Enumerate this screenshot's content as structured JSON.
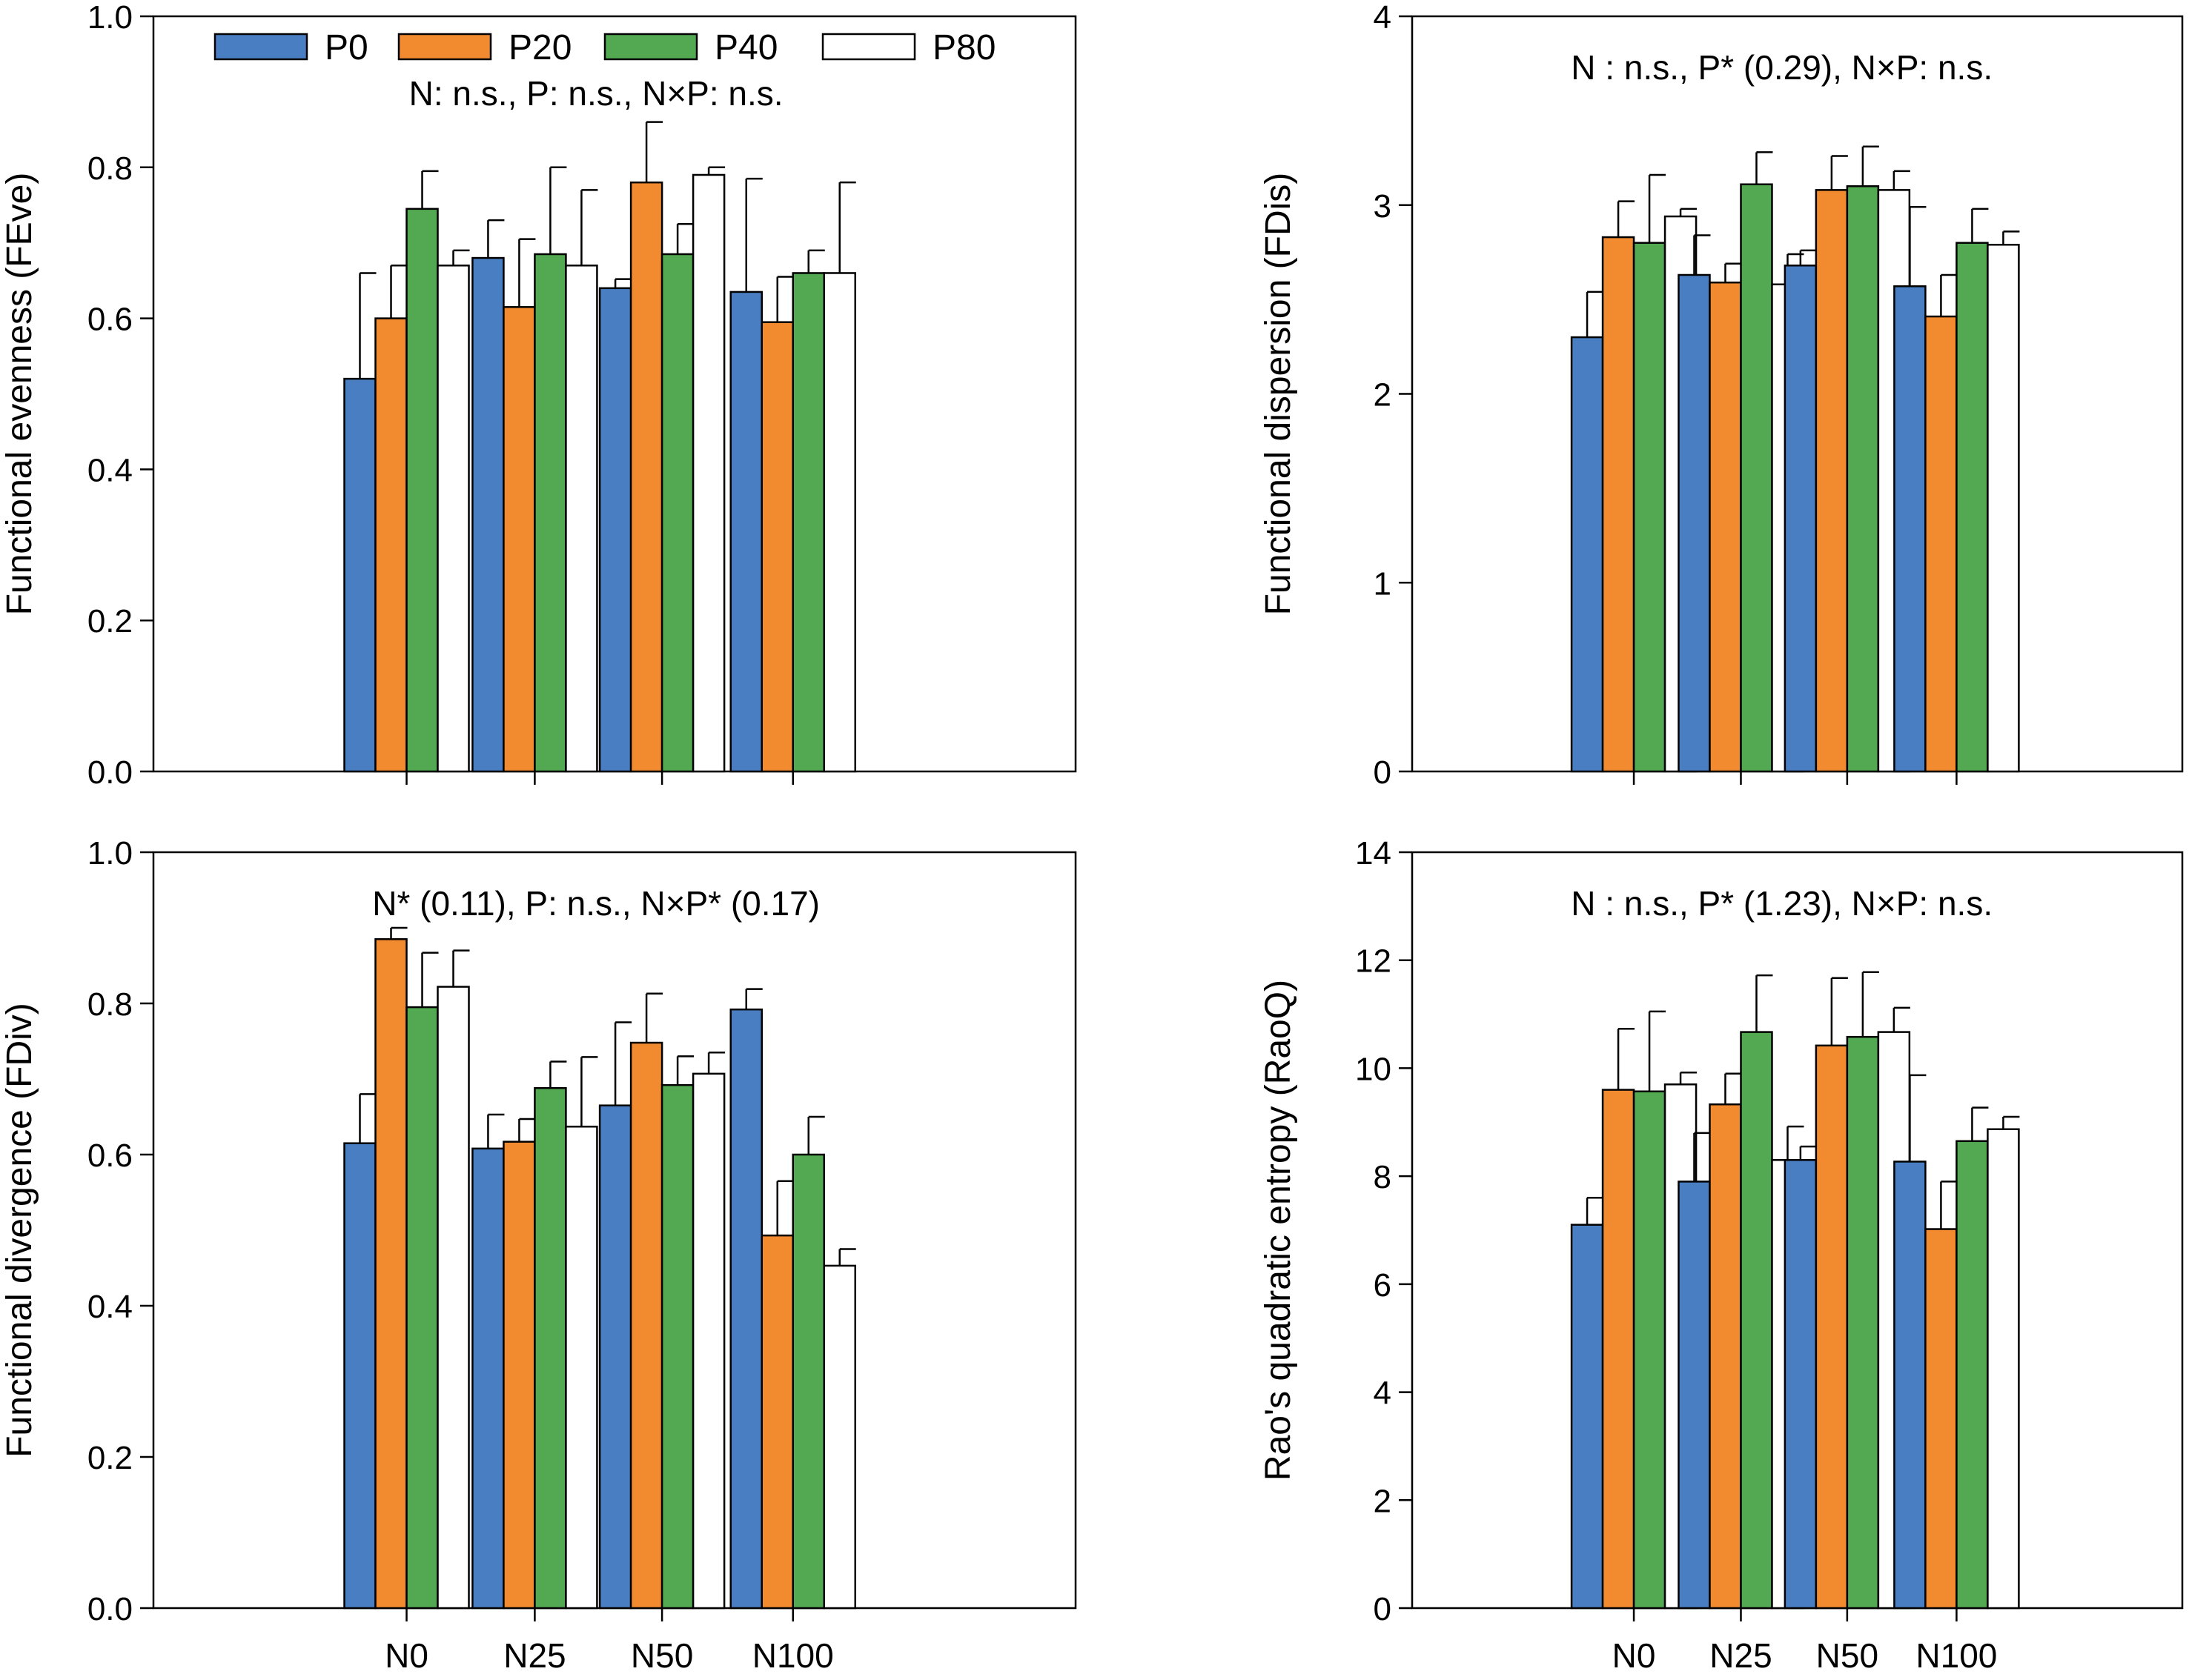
{
  "legend": {
    "items": [
      {
        "label": "P0",
        "color": "#4a7ec2"
      },
      {
        "label": "P20",
        "color": "#f28b30"
      },
      {
        "label": "P40",
        "color": "#53a852"
      },
      {
        "label": "P80",
        "color": "#ffffff"
      }
    ]
  },
  "chart_data": [
    {
      "type": "bar",
      "panel": "top-left",
      "ylabel": "Functional evenness (FEve)",
      "annotation": "N: n.s., P: n.s., N×P: n.s.",
      "categories": [
        "N0",
        "N25",
        "N50",
        "N100"
      ],
      "show_xticklabels": false,
      "ylim": [
        0,
        1.0
      ],
      "yticks": [
        "0.0",
        "0.2",
        "0.4",
        "0.6",
        "0.8",
        "1.0"
      ],
      "series": [
        {
          "name": "P0",
          "values": [
            0.52,
            0.68,
            0.64,
            0.635
          ],
          "errors": [
            0.14,
            0.05,
            0.012,
            0.15
          ]
        },
        {
          "name": "P20",
          "values": [
            0.6,
            0.615,
            0.78,
            0.595
          ],
          "errors": [
            0.07,
            0.09,
            0.08,
            0.06
          ]
        },
        {
          "name": "P40",
          "values": [
            0.745,
            0.685,
            0.685,
            0.66
          ],
          "errors": [
            0.05,
            0.115,
            0.04,
            0.03
          ]
        },
        {
          "name": "P80",
          "values": [
            0.67,
            0.67,
            0.79,
            0.66
          ],
          "errors": [
            0.02,
            0.1,
            0.01,
            0.12
          ]
        }
      ]
    },
    {
      "type": "bar",
      "panel": "top-right",
      "ylabel": "Functional dispersion (FDis)",
      "annotation": "N : n.s., P* (0.29), N×P: n.s.",
      "categories": [
        "N0",
        "N25",
        "N50",
        "N100"
      ],
      "show_xticklabels": false,
      "ylim": [
        0,
        4
      ],
      "yticks": [
        "0",
        "1",
        "2",
        "3",
        "4"
      ],
      "series": [
        {
          "name": "P0",
          "values": [
            2.3,
            2.63,
            2.68,
            2.57
          ],
          "errors": [
            0.24,
            0.21,
            0.08,
            0.42
          ]
        },
        {
          "name": "P20",
          "values": [
            2.83,
            2.59,
            3.08,
            2.41
          ],
          "errors": [
            0.19,
            0.1,
            0.18,
            0.22
          ]
        },
        {
          "name": "P40",
          "values": [
            2.8,
            3.11,
            3.1,
            2.8
          ],
          "errors": [
            0.36,
            0.17,
            0.21,
            0.18
          ]
        },
        {
          "name": "P80",
          "values": [
            2.94,
            2.58,
            3.08,
            2.79
          ],
          "errors": [
            0.04,
            0.16,
            0.1,
            0.07
          ]
        }
      ]
    },
    {
      "type": "bar",
      "panel": "bottom-left",
      "ylabel": "Functional divergence (FDiv)",
      "annotation": "N* (0.11), P: n.s., N×P* (0.17)",
      "categories": [
        "N0",
        "N25",
        "N50",
        "N100"
      ],
      "show_xticklabels": true,
      "ylim": [
        0,
        1.0
      ],
      "yticks": [
        "0.0",
        "0.2",
        "0.4",
        "0.6",
        "0.8",
        "1.0"
      ],
      "series": [
        {
          "name": "P0",
          "values": [
            0.615,
            0.608,
            0.665,
            0.792
          ],
          "errors": [
            0.065,
            0.045,
            0.11,
            0.027
          ]
        },
        {
          "name": "P20",
          "values": [
            0.885,
            0.617,
            0.748,
            0.493
          ],
          "errors": [
            0.015,
            0.03,
            0.065,
            0.072
          ]
        },
        {
          "name": "P40",
          "values": [
            0.795,
            0.688,
            0.692,
            0.6
          ],
          "errors": [
            0.072,
            0.035,
            0.038,
            0.05
          ]
        },
        {
          "name": "P80",
          "values": [
            0.822,
            0.637,
            0.707,
            0.453
          ],
          "errors": [
            0.048,
            0.092,
            0.028,
            0.022
          ]
        }
      ]
    },
    {
      "type": "bar",
      "panel": "bottom-right",
      "ylabel": "Rao's quadratic entropy (RaoQ)",
      "annotation": "N : n.s., P* (1.23), N×P: n.s.",
      "categories": [
        "N0",
        "N25",
        "N50",
        "N100"
      ],
      "show_xticklabels": true,
      "ylim": [
        0,
        14
      ],
      "yticks": [
        "0",
        "2",
        "4",
        "6",
        "8",
        "10",
        "12",
        "14"
      ],
      "series": [
        {
          "name": "P0",
          "values": [
            7.1,
            7.9,
            8.3,
            8.27
          ],
          "errors": [
            0.5,
            0.9,
            0.25,
            1.6
          ]
        },
        {
          "name": "P20",
          "values": [
            9.6,
            9.33,
            10.42,
            7.02
          ],
          "errors": [
            1.13,
            0.57,
            1.25,
            0.88
          ]
        },
        {
          "name": "P40",
          "values": [
            9.57,
            10.67,
            10.58,
            8.65
          ],
          "errors": [
            1.48,
            1.05,
            1.2,
            0.62
          ]
        },
        {
          "name": "P80",
          "values": [
            9.7,
            8.3,
            10.67,
            8.87
          ],
          "errors": [
            0.22,
            0.62,
            0.45,
            0.23
          ]
        }
      ]
    }
  ]
}
